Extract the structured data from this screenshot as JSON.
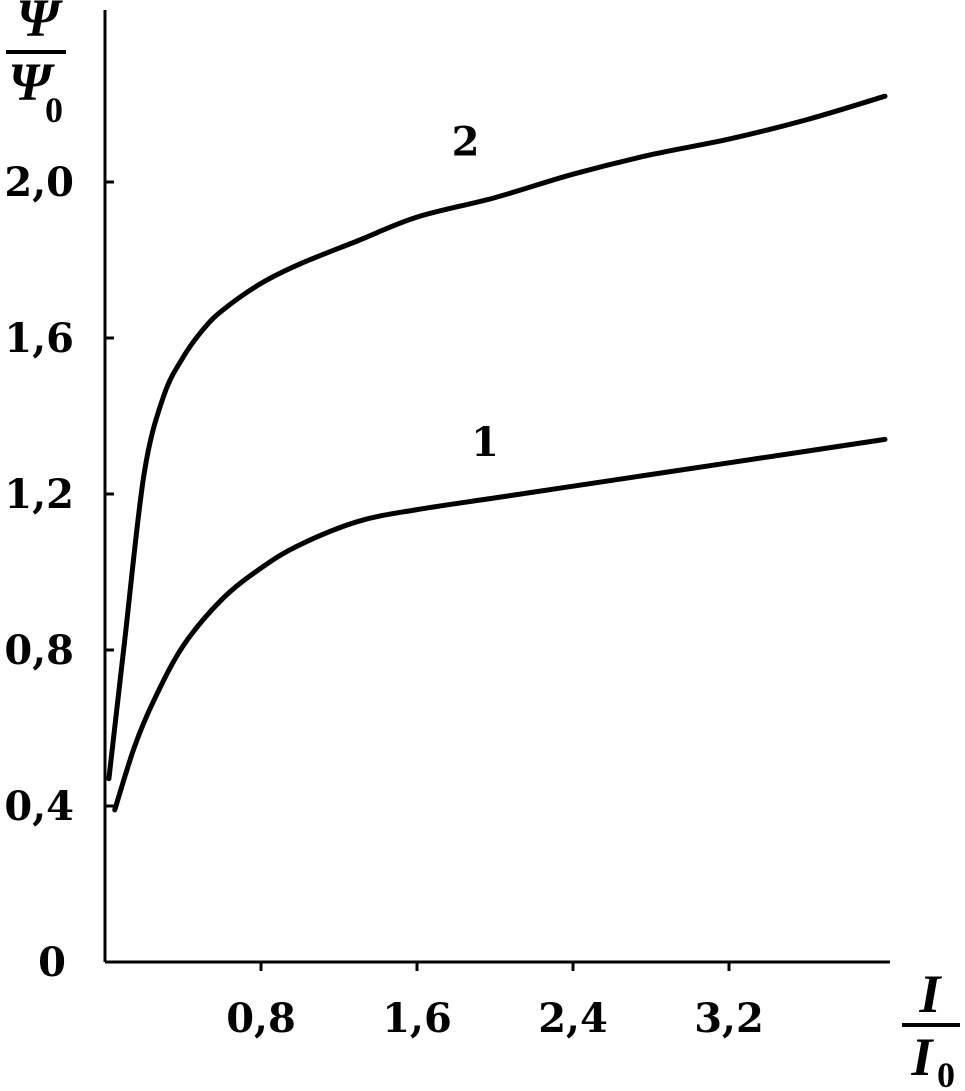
{
  "chart_data": {
    "type": "line",
    "title": "",
    "ylabel": {
      "main": "Ψ",
      "denominator_main": "Ψ",
      "denominator_sub": "0"
    },
    "xlabel": {
      "main": "I",
      "denominator_main": "I",
      "denominator_sub": "0"
    },
    "xlim": [
      0,
      4.1
    ],
    "ylim": [
      0,
      2.4
    ],
    "x_ticks": [
      {
        "value": 0.8,
        "label": "0,8"
      },
      {
        "value": 1.6,
        "label": "1,6"
      },
      {
        "value": 2.4,
        "label": "2,4"
      },
      {
        "value": 3.2,
        "label": "3,2"
      }
    ],
    "y_ticks": [
      {
        "value": 0,
        "label": "0"
      },
      {
        "value": 0.4,
        "label": "0,4"
      },
      {
        "value": 0.8,
        "label": "0,8"
      },
      {
        "value": 1.2,
        "label": "1,2"
      },
      {
        "value": 1.6,
        "label": "1,6"
      },
      {
        "value": 2.0,
        "label": "2,0"
      }
    ],
    "grid": false,
    "legend": "none",
    "series": [
      {
        "label": "1",
        "color": "#000000",
        "x": [
          0.05,
          0.15,
          0.25,
          0.4,
          0.6,
          0.8,
          1.0,
          1.3,
          1.6,
          2.0,
          2.4,
          2.8,
          3.2,
          3.6,
          4.0
        ],
        "y": [
          0.39,
          0.55,
          0.67,
          0.81,
          0.93,
          1.01,
          1.07,
          1.13,
          1.16,
          1.19,
          1.22,
          1.25,
          1.28,
          1.31,
          1.34
        ]
      },
      {
        "label": "2",
        "color": "#000000",
        "x": [
          0.02,
          0.1,
          0.2,
          0.3,
          0.4,
          0.5,
          0.6,
          0.8,
          1.0,
          1.3,
          1.6,
          2.0,
          2.4,
          2.8,
          3.2,
          3.6,
          4.0
        ],
        "y": [
          0.47,
          0.82,
          1.25,
          1.45,
          1.55,
          1.62,
          1.67,
          1.74,
          1.79,
          1.85,
          1.91,
          1.96,
          2.02,
          2.07,
          2.11,
          2.16,
          2.22
        ]
      }
    ]
  }
}
